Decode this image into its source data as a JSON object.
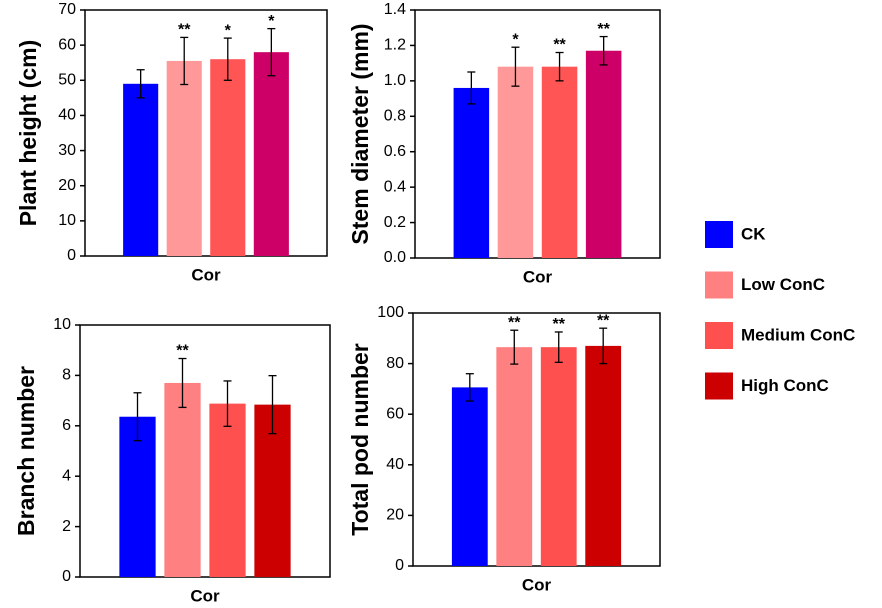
{
  "chart_data": [
    {
      "type": "bar",
      "ylabel": "Plant height (cm)",
      "categories": [
        "Cor"
      ],
      "ylim": [
        0,
        70
      ],
      "yticks": [
        0,
        10,
        20,
        30,
        40,
        50,
        60,
        70
      ],
      "series": [
        {
          "color": "#0000ff",
          "values": [
            49
          ],
          "errors": [
            4
          ]
        },
        {
          "color": "#ff9999",
          "values": [
            55.5
          ],
          "errors": [
            6.7
          ],
          "significance": [
            "**"
          ]
        },
        {
          "color": "#ff5555",
          "values": [
            56
          ],
          "errors": [
            6
          ],
          "significance": [
            "*"
          ]
        },
        {
          "color": "#cc0066",
          "values": [
            58
          ],
          "errors": [
            6.7
          ],
          "significance": [
            "*"
          ]
        }
      ]
    },
    {
      "type": "bar",
      "ylabel": "Stem diameter (mm)",
      "categories": [
        "Cor"
      ],
      "ylim": [
        0,
        1.4
      ],
      "yticks": [
        {
          "value": 0,
          "label": "0.0"
        },
        0.2,
        0.4,
        0.6,
        0.8,
        {
          "value": 1,
          "label": "1.0"
        },
        1.2,
        1.4
      ],
      "series": [
        {
          "color": "#0000ff",
          "values": [
            0.96
          ],
          "errors": [
            0.09
          ]
        },
        {
          "color": "#ff9999",
          "values": [
            1.08
          ],
          "errors": [
            0.11
          ],
          "significance": [
            "*"
          ]
        },
        {
          "color": "#ff5555",
          "values": [
            1.08
          ],
          "errors": [
            0.08
          ],
          "significance": [
            "**"
          ]
        },
        {
          "color": "#cc0066",
          "values": [
            1.17
          ],
          "errors": [
            0.08
          ],
          "significance": [
            "**"
          ]
        }
      ]
    },
    {
      "type": "bar",
      "ylabel": "Branch number",
      "categories": [
        "Cor"
      ],
      "ylim": [
        0,
        10
      ],
      "yticks": [
        0,
        2,
        4,
        6,
        8,
        10
      ],
      "series": [
        {
          "color": "#0000ff",
          "values": [
            6.36
          ],
          "errors": [
            0.95
          ]
        },
        {
          "color": "#ff8080",
          "values": [
            7.7
          ],
          "errors": [
            0.97
          ],
          "significance": [
            "**"
          ]
        },
        {
          "color": "#ff5050",
          "values": [
            6.88
          ],
          "errors": [
            0.9
          ]
        },
        {
          "color": "#cc0000",
          "values": [
            6.84
          ],
          "errors": [
            1.15
          ]
        }
      ]
    },
    {
      "type": "bar",
      "ylabel": "Total pod number",
      "categories": [
        "Cor"
      ],
      "ylim": [
        0,
        100
      ],
      "yticks": [
        0,
        20,
        40,
        60,
        80,
        100
      ],
      "series": [
        {
          "color": "#0000ff",
          "values": [
            70.6
          ],
          "errors": [
            5.4
          ]
        },
        {
          "color": "#ff8080",
          "values": [
            86.5
          ],
          "errors": [
            6.7
          ],
          "significance": [
            "**"
          ]
        },
        {
          "color": "#ff5050",
          "values": [
            86.5
          ],
          "errors": [
            6
          ],
          "significance": [
            "**"
          ]
        },
        {
          "color": "#cc0000",
          "values": [
            87
          ],
          "errors": [
            7
          ],
          "significance": [
            "**"
          ]
        }
      ]
    }
  ],
  "legend": {
    "items": [
      {
        "name": "CK",
        "color": "#0000ff"
      },
      {
        "name": "Low ConC",
        "color": "#ff8080"
      },
      {
        "name": "Medium ConC",
        "color": "#ff5050"
      },
      {
        "name": "High ConC",
        "color": "#cc0000"
      }
    ]
  }
}
